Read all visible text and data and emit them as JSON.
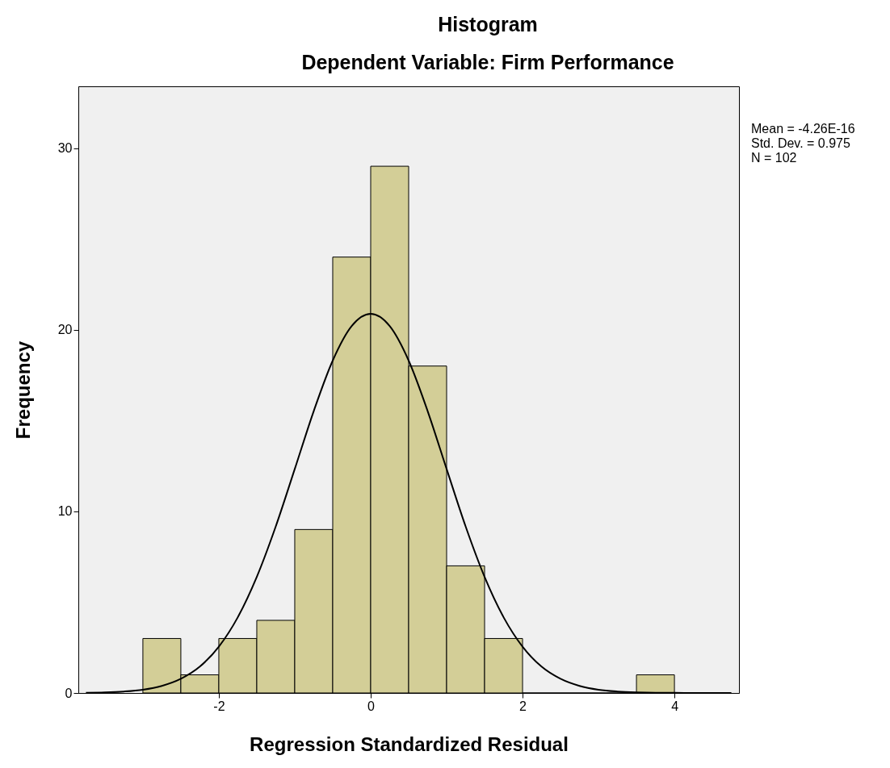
{
  "chart_data": {
    "type": "histogram",
    "title": "Histogram",
    "subtitle": "Dependent Variable: Firm Performance",
    "xlabel": "Regression Standardized Residual",
    "ylabel": "Frequency",
    "bins": [
      -3,
      -2.5,
      -2,
      -1.5,
      -1,
      -0.5,
      0,
      0.5,
      1,
      1.5,
      2,
      2.5,
      3,
      3.5,
      4
    ],
    "values": [
      3,
      1,
      3,
      4,
      9,
      24,
      29,
      18,
      7,
      3,
      0,
      0,
      0,
      1
    ],
    "color": "#d3ce97",
    "series": [
      {
        "type": "line",
        "color": "#000000",
        "x": [
          -3.75,
          -3.5,
          -3.25,
          -3,
          -2.75,
          -2.5,
          -2.25,
          -2,
          -1.75,
          -1.5,
          -1.25,
          -1,
          -0.75,
          -0.5,
          -0.25,
          0,
          0.25,
          0.5,
          0.75,
          1,
          1.25,
          1.5,
          1.75,
          2,
          2.25,
          2.5,
          2.75,
          3,
          3.25,
          3.5,
          3.75,
          4,
          4.25,
          4.5,
          4.75
        ],
        "values": [
          0.01,
          0.03,
          0.08,
          0.18,
          0.39,
          0.78,
          1.45,
          2.55,
          4.17,
          6.39,
          9.17,
          12.33,
          15.52,
          18.3,
          20.2,
          20.87,
          20.2,
          18.3,
          15.52,
          12.33,
          9.17,
          6.39,
          4.17,
          2.55,
          1.45,
          0.78,
          0.39,
          0.18,
          0.08,
          0.03,
          0.01,
          0.01,
          0,
          0,
          0
        ]
      }
    ],
    "xlim": [
      -3.85,
      4.85
    ],
    "xticks": [
      -2,
      0,
      2,
      4
    ],
    "ylim": [
      0,
      33.4
    ],
    "yticks": [
      0,
      10,
      20,
      30
    ],
    "annotations": [
      "Mean = -4.26E-16",
      "Std. Dev. = 0.975",
      "N = 102"
    ]
  }
}
